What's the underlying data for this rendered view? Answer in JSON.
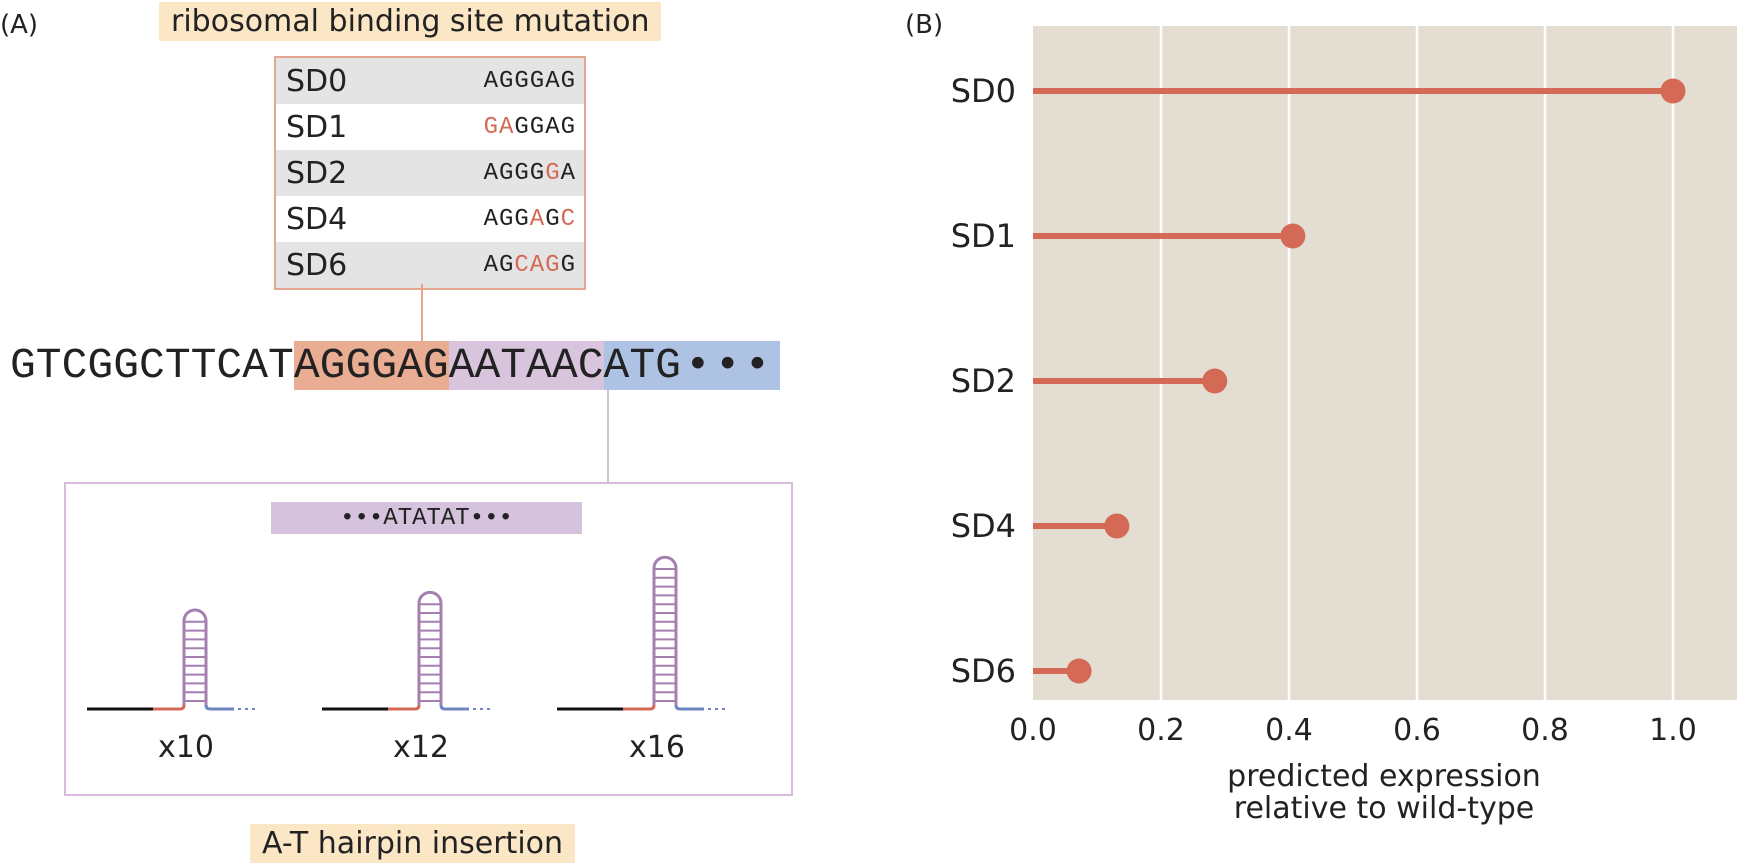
{
  "panel_a": {
    "label": "(A)",
    "rbs_title": "ribosomal binding site mutation",
    "sd_variants": [
      {
        "name": "SD0",
        "seq": [
          {
            "t": "AGGGAG",
            "m": false
          }
        ]
      },
      {
        "name": "SD1",
        "seq": [
          {
            "t": "GA",
            "m": true
          },
          {
            "t": "GGAG",
            "m": false
          }
        ]
      },
      {
        "name": "SD2",
        "seq": [
          {
            "t": "AGGG",
            "m": false
          },
          {
            "t": "G",
            "m": true
          },
          {
            "t": "A",
            "m": false
          }
        ]
      },
      {
        "name": "SD4",
        "seq": [
          {
            "t": "AGG",
            "m": false
          },
          {
            "t": "A",
            "m": true
          },
          {
            "t": "G",
            "m": false
          },
          {
            "t": "C",
            "m": true
          }
        ]
      },
      {
        "name": "SD6",
        "seq": [
          {
            "t": "AG",
            "m": false
          },
          {
            "t": "CAG",
            "m": true
          },
          {
            "t": "G",
            "m": false
          }
        ]
      }
    ],
    "sequence": {
      "prefix": "GTCGGCTTCAT",
      "rbs": "AGGGAG",
      "spacer": "AATAAC",
      "start": "ATG",
      "ellipsis": "•••"
    },
    "insertion_seq": "•••ATATAT•••",
    "hairpins": [
      {
        "label": "x10",
        "pairs": 10
      },
      {
        "label": "x12",
        "pairs": 12
      },
      {
        "label": "x16",
        "pairs": 16
      }
    ],
    "hairpin_title": "A-T hairpin insertion",
    "colors": {
      "mutation": "#d46a55",
      "rbs": "#e8ad92",
      "spacer": "#d9c4dd",
      "start": "#aec3e3",
      "stem": "#a47fb0"
    }
  },
  "panel_b": {
    "label": "(B)"
  },
  "chart_data": {
    "type": "lollipop",
    "orientation": "horizontal",
    "categories": [
      "SD0",
      "SD1",
      "SD2",
      "SD4",
      "SD6"
    ],
    "values": [
      1.0,
      0.406,
      0.284,
      0.131,
      0.072
    ],
    "xlabel": "predicted expression\nrelative to wild-type",
    "xlim": [
      0.0,
      1.1
    ],
    "xticks": [
      0.0,
      0.2,
      0.4,
      0.6,
      0.8,
      1.0
    ],
    "xtick_labels": [
      "0.0",
      "0.2",
      "0.4",
      "0.6",
      "0.8",
      "1.0"
    ],
    "grid": true,
    "background_color": "#e3ddd2",
    "series_color": "#d46a55"
  }
}
